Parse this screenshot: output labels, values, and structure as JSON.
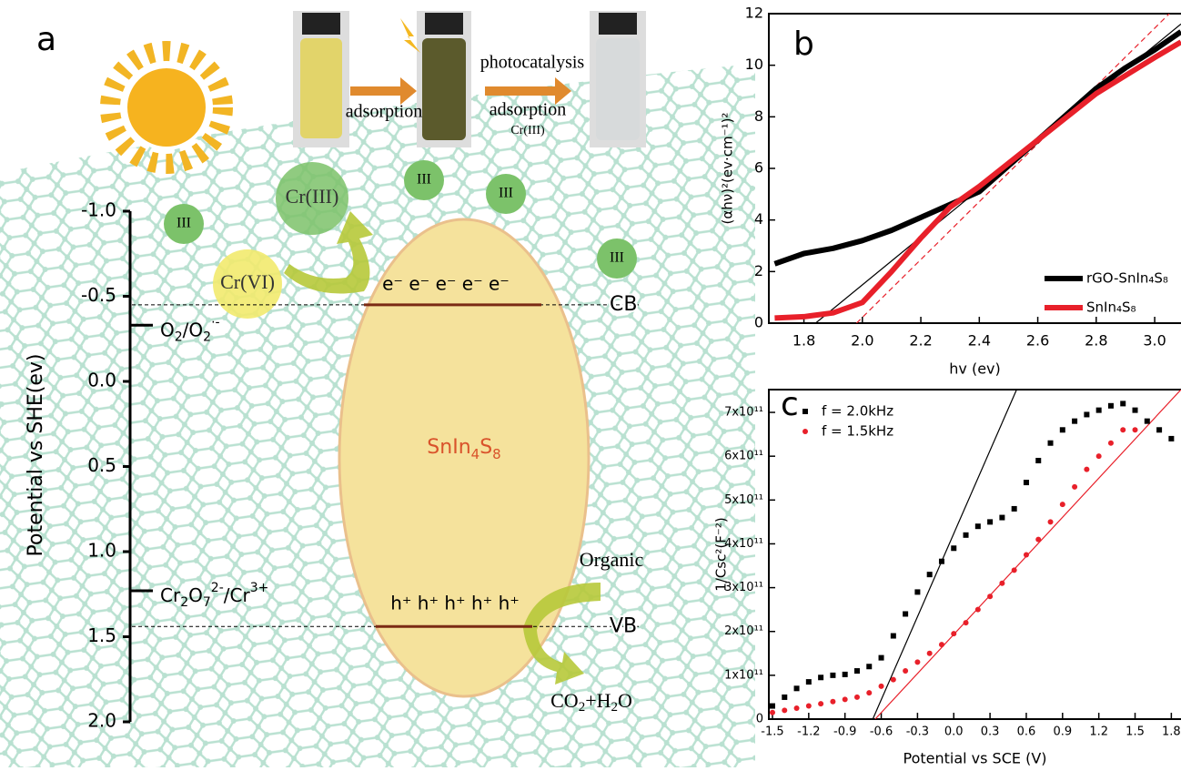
{
  "panel_a": {
    "label": "a",
    "axis_label": "Potential vs SHE(ev)",
    "ylim": [
      -1.0,
      2.0
    ],
    "yticks": [
      {
        "value": -1.0,
        "label": "-1.0"
      },
      {
        "value": -0.5,
        "label": "-0.5"
      },
      {
        "value": 0,
        "label": "0.0"
      },
      0.5,
      {
        "value": 1.0,
        "label": "1.0"
      },
      1.5,
      {
        "value": 2.0,
        "label": "2.0"
      }
    ],
    "levels": [
      {
        "name": "CB",
        "value": -0.45
      },
      {
        "name": "VB",
        "value": 1.44
      }
    ],
    "couples": [
      {
        "parts": [
          "O",
          "2",
          "/O",
          "2",
          "·-"
        ],
        "value": -0.33
      },
      {
        "parts": [
          "Cr",
          "2",
          "O",
          "7",
          "2-",
          "/Cr",
          "3+"
        ],
        "value": 1.23
      }
    ],
    "semiconductor": [
      "SnIn",
      "4",
      "S",
      "8"
    ],
    "electrons": "e⁻ e⁻ e⁻ e⁻ e⁻",
    "holes": "h⁺ h⁺ h⁺ h⁺ h⁺",
    "species": [
      "Cr(III)",
      "Cr(VI)",
      "III",
      "III",
      "III",
      "III"
    ],
    "process": [
      "adsorption",
      "photocatalysis",
      "adsorption",
      "Cr(III)"
    ],
    "organic": "Organic",
    "products": [
      "CO",
      "2",
      "+H",
      "2",
      "O"
    ]
  },
  "chart_data": [
    {
      "type": "line",
      "label": "b",
      "x_label": "hv (ev)",
      "y_label": "(αhν)²(ev·cm⁻¹)²",
      "x": [
        1.7,
        1.8,
        1.9,
        2.0,
        2.1,
        2.2,
        2.3,
        2.4,
        2.5,
        2.6,
        2.7,
        2.8,
        2.9,
        3.0,
        3.09
      ],
      "series": [
        {
          "name": "rGO-SnIn₄S₈",
          "color": "#000000",
          "values": [
            2.3,
            2.7,
            2.9,
            3.2,
            3.6,
            4.1,
            4.6,
            5.1,
            6.1,
            7.1,
            8.1,
            9.1,
            9.9,
            10.6,
            11.3
          ]
        },
        {
          "name": "SnIn₄S₈",
          "color": "#e8202a",
          "values": [
            0.2,
            0.25,
            0.4,
            0.8,
            2.0,
            3.3,
            4.5,
            5.3,
            6.2,
            7.1,
            8.0,
            8.9,
            9.6,
            10.3,
            10.9
          ]
        }
      ],
      "fits": [
        {
          "color": "#000000",
          "style": "solid",
          "x": [
            1.84,
            3.09
          ],
          "values": [
            0,
            11.6
          ]
        },
        {
          "color": "#e8202a",
          "style": "dashed",
          "x": [
            1.98,
            3.05
          ],
          "values": [
            0,
            12
          ]
        }
      ],
      "xlim": [
        1.68,
        3.09
      ],
      "ylim": [
        0,
        12
      ],
      "xticks": [
        1.8,
        {
          "value": 2.0,
          "label": "2.0"
        },
        2.2,
        2.4,
        2.6,
        2.8,
        {
          "value": 3.0,
          "label": "3.0"
        }
      ],
      "yticks": [
        0,
        2,
        4,
        6,
        8,
        10,
        12
      ],
      "legend": "lower right"
    },
    {
      "type": "scatter",
      "label": "c",
      "x_label": "Potential vs SCE (V)",
      "y_label": "1/Csc²(F⁻²)",
      "x": [
        -1.5,
        -1.4,
        -1.3,
        -1.2,
        -1.1,
        -1.0,
        -0.9,
        -0.8,
        -0.7,
        -0.6,
        -0.5,
        -0.4,
        -0.3,
        -0.2,
        -0.1,
        0,
        0.1,
        0.2,
        0.3,
        0.4,
        0.5,
        0.6,
        0.7,
        0.8,
        0.9,
        1.0,
        1.1,
        1.2,
        1.3,
        1.4,
        1.5,
        1.6,
        1.7,
        1.8
      ],
      "series": [
        {
          "name": "f = 2.0kHz",
          "color": "#000000",
          "marker": "square",
          "values": [
            30000000000.0,
            50000000000.0,
            70000000000.0,
            85000000000.0,
            95000000000.0,
            100000000000.0,
            102000000000.0,
            110000000000.0,
            120000000000.0,
            140000000000.0,
            190000000000.0,
            240000000000.0,
            290000000000.0,
            330000000000.0,
            360000000000.0,
            390000000000.0,
            420000000000.0,
            440000000000.0,
            450000000000.0,
            460000000000.0,
            480000000000.0,
            540000000000.0,
            590000000000.0,
            630000000000.0,
            660000000000.0,
            680000000000.0,
            695000000000.0,
            705000000000.0,
            715000000000.0,
            720000000000.0,
            705000000000.0,
            680000000000.0,
            660000000000.0,
            640000000000.0
          ]
        },
        {
          "name": "f = 1.5kHz",
          "color": "#e8202a",
          "marker": "circle",
          "values": [
            15000000000.0,
            20000000000.0,
            25000000000.0,
            30000000000.0,
            35000000000.0,
            40000000000.0,
            45000000000.0,
            50000000000.0,
            60000000000.0,
            75000000000.0,
            90000000000.0,
            110000000000.0,
            130000000000.0,
            150000000000.0,
            170000000000.0,
            195000000000.0,
            220000000000.0,
            250000000000.0,
            280000000000.0,
            310000000000.0,
            340000000000.0,
            375000000000.0,
            410000000000.0,
            450000000000.0,
            490000000000.0,
            530000000000.0,
            570000000000.0,
            600000000000.0,
            630000000000.0,
            660000000000.0,
            660000000000.0,
            null,
            null,
            null
          ]
        }
      ],
      "fits": [
        {
          "color": "#000000",
          "style": "solid",
          "x": [
            -0.67,
            0.52
          ],
          "values": [
            0,
            752000000000.0
          ]
        },
        {
          "color": "#e8202a",
          "style": "solid",
          "x": [
            -0.65,
            1.88
          ],
          "values": [
            0,
            752000000000.0
          ]
        }
      ],
      "xlim": [
        -1.53,
        1.88
      ],
      "ylim": [
        0,
        752000000000.0
      ],
      "xticks": [
        -1.5,
        -1.2,
        -0.9,
        -0.6,
        -0.3,
        {
          "value": 0,
          "label": "0.0"
        },
        0.3,
        0.6,
        0.9,
        1.2,
        1.5,
        1.8
      ],
      "yticks": [
        0,
        {
          "value": 100000000000.0,
          "label": "1x10¹¹"
        },
        {
          "value": 200000000000.0,
          "label": "2x10¹¹"
        },
        {
          "value": 300000000000.0,
          "label": "3x10¹¹"
        },
        {
          "value": 400000000000.0,
          "label": "4x10¹¹"
        },
        {
          "value": 500000000000.0,
          "label": "5x10¹¹"
        },
        {
          "value": 600000000000.0,
          "label": "6x10¹¹"
        },
        {
          "value": 700000000000.0,
          "label": "7x10¹¹"
        }
      ],
      "legend": "upper left"
    }
  ]
}
